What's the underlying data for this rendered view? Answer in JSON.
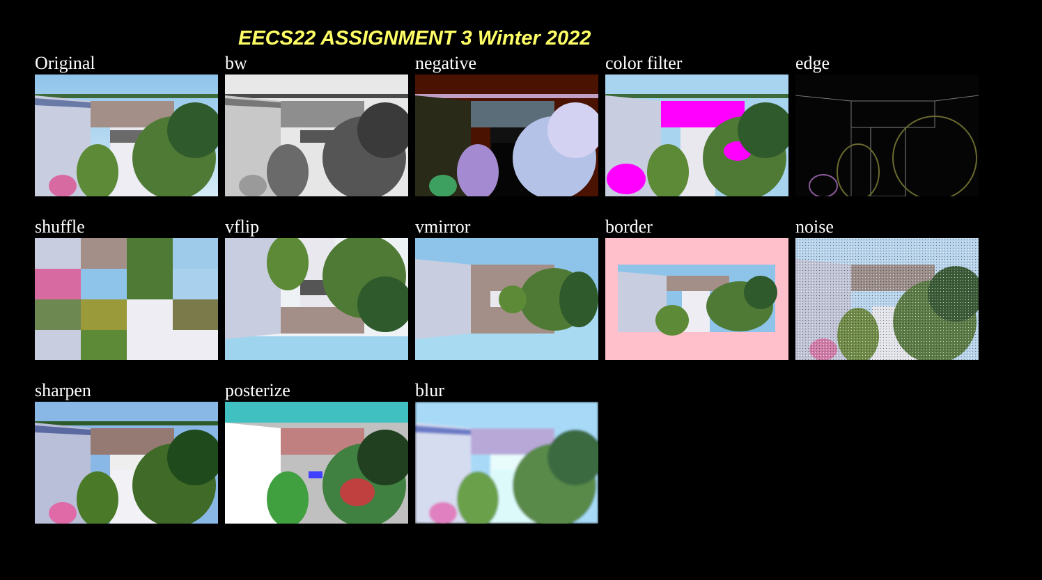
{
  "header": {
    "title": "EECS22 ASSIGNMENT 3 Winter 2022",
    "title_color": "#ffff66"
  },
  "images": [
    {
      "id": "original",
      "label": "Original"
    },
    {
      "id": "bw",
      "label": "bw"
    },
    {
      "id": "negative",
      "label": "negative"
    },
    {
      "id": "colorfilter",
      "label": "color filter"
    },
    {
      "id": "edge",
      "label": "edge"
    },
    {
      "id": "shuffle",
      "label": "shuffle"
    },
    {
      "id": "vflip",
      "label": "vflip"
    },
    {
      "id": "vmirror",
      "label": "vmirror"
    },
    {
      "id": "border",
      "label": "border"
    },
    {
      "id": "noise",
      "label": "noise"
    },
    {
      "id": "sharpen",
      "label": "sharpen"
    },
    {
      "id": "posterize",
      "label": "posterize"
    },
    {
      "id": "blur",
      "label": "blur"
    }
  ],
  "colors": {
    "background": "#000000",
    "label": "#ffffff",
    "border_fill": "#ffc0cb"
  }
}
